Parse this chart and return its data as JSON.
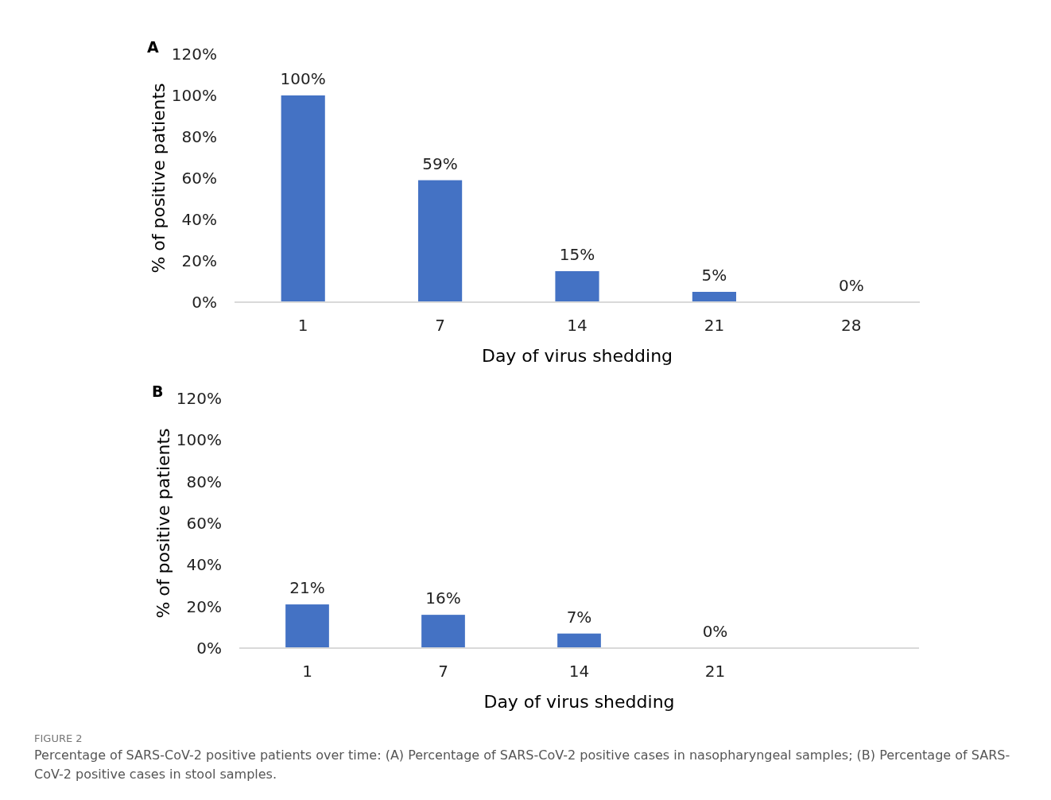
{
  "chart_data": [
    {
      "type": "bar",
      "title": "A",
      "categories": [
        "1",
        "7",
        "14",
        "21",
        "28"
      ],
      "values": [
        100,
        59,
        15,
        5,
        0
      ],
      "value_labels": [
        "100%",
        "59%",
        "15%",
        "5%",
        "0%"
      ],
      "color": "#4472c4",
      "xlabel": "Day of virus shedding",
      "ylabel": "% of positive patients",
      "ylim": [
        0,
        120
      ],
      "yticks": [
        {
          "value": 0,
          "label": "0%"
        },
        {
          "value": 20,
          "label": "20%"
        },
        {
          "value": 40,
          "label": "40%"
        },
        {
          "value": 60,
          "label": "60%"
        },
        {
          "value": 80,
          "label": "80%"
        },
        {
          "value": 100,
          "label": "100%"
        },
        {
          "value": 120,
          "label": "120%"
        }
      ]
    },
    {
      "type": "bar",
      "title": "B",
      "categories": [
        "1",
        "7",
        "14",
        "21",
        null
      ],
      "values": [
        21,
        16,
        7,
        0,
        null
      ],
      "value_labels": [
        "21%",
        "16%",
        "7%",
        "0%",
        null
      ],
      "color": "#4472c4",
      "xlabel": "Day of virus shedding",
      "ylabel": "% of positive patients",
      "ylim": [
        0,
        120
      ],
      "yticks": [
        {
          "value": 0,
          "label": "0%"
        },
        {
          "value": 20,
          "label": "20%"
        },
        {
          "value": 40,
          "label": "40%"
        },
        {
          "value": 60,
          "label": "60%"
        },
        {
          "value": 80,
          "label": "80%"
        },
        {
          "value": 100,
          "label": "100%"
        },
        {
          "value": 120,
          "label": "120%"
        }
      ],
      "annotations": [
        "FIGURE 2",
        "Percentage of SARS-CoV-2 positive patients over time: (A) Percentage of SARS-CoV-2 positive cases in nasopharyngeal samples; (B) Percentage of SARS-CoV-2 positive cases in stool samples."
      ]
    }
  ]
}
